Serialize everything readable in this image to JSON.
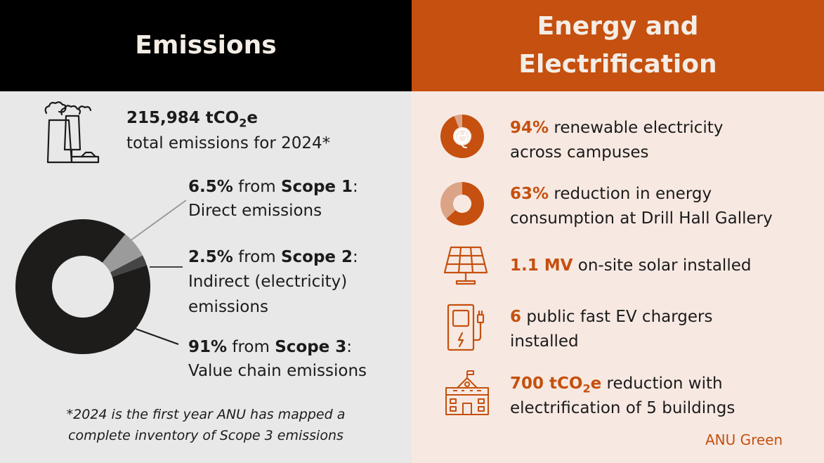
{
  "colors": {
    "accent": "#c5500f",
    "accent_light": "#dca487",
    "dark": "#1b1b1b",
    "left_bg": "#e8e8e8",
    "right_bg": "#f7e9e2",
    "scope1": "#9b9b9b",
    "scope2": "#454545",
    "scope3": "#1d1c1a"
  },
  "left": {
    "title": "Emissions",
    "total": {
      "value": "215,984 tCO",
      "sub": "2",
      "unit_tail": "e",
      "desc": "total emissions for 2024*",
      "icon": "factory-icon"
    },
    "scope1": {
      "pct": "6.5%",
      "from": " from ",
      "scope": "Scope 1",
      "colon": ":",
      "desc": "Direct emissions"
    },
    "scope2": {
      "pct": "2.5%",
      "from": " from ",
      "scope": "Scope 2",
      "colon": ":",
      "desc1": "Indirect (electricity)",
      "desc2": "emissions"
    },
    "scope3": {
      "pct": "91%",
      "from": " from ",
      "scope": "Scope 3",
      "colon": ":",
      "desc": "Value chain emissions"
    },
    "footnote1": "*2024 is the first year ANU has mapped a",
    "footnote2": "complete inventory of Scope 3 emissions"
  },
  "right": {
    "title1": "Energy and",
    "title2": "Electrification",
    "items": [
      {
        "value": "94%",
        "text1": " renewable electricity",
        "text2": "across campuses",
        "icon": "renewable-plug-donut-icon"
      },
      {
        "value": "63%",
        "text1": " reduction in energy",
        "text2": "consumption at Drill Hall Gallery",
        "icon": "reduction-donut-icon"
      },
      {
        "value": "1.1 MV",
        "text1": " on-site solar installed",
        "icon": "solar-panel-icon"
      },
      {
        "value": "6",
        "text1": " public fast EV chargers",
        "text2": "installed",
        "icon": "ev-charger-icon"
      },
      {
        "value": "700 tCO",
        "sub": "2",
        "unit_tail": "e",
        "text1": " reduction with",
        "text2": "electrification of 5 buildings",
        "icon": "school-building-icon"
      }
    ],
    "brand": "ANU Green"
  },
  "chart_data": [
    {
      "type": "pie",
      "categories": [
        "Scope 1",
        "Scope 2",
        "Scope 3"
      ],
      "values": [
        6.5,
        2.5,
        91
      ],
      "colors": [
        "#9b9b9b",
        "#454545",
        "#1d1c1a"
      ]
    },
    {
      "type": "pie",
      "categories": [
        "renewable",
        "other"
      ],
      "values": [
        94,
        6
      ],
      "colors": [
        "#c5500f",
        "#dca487"
      ]
    },
    {
      "type": "pie",
      "categories": [
        "reduction",
        "remaining"
      ],
      "values": [
        63,
        37
      ],
      "colors": [
        "#c5500f",
        "#dca487"
      ]
    }
  ]
}
